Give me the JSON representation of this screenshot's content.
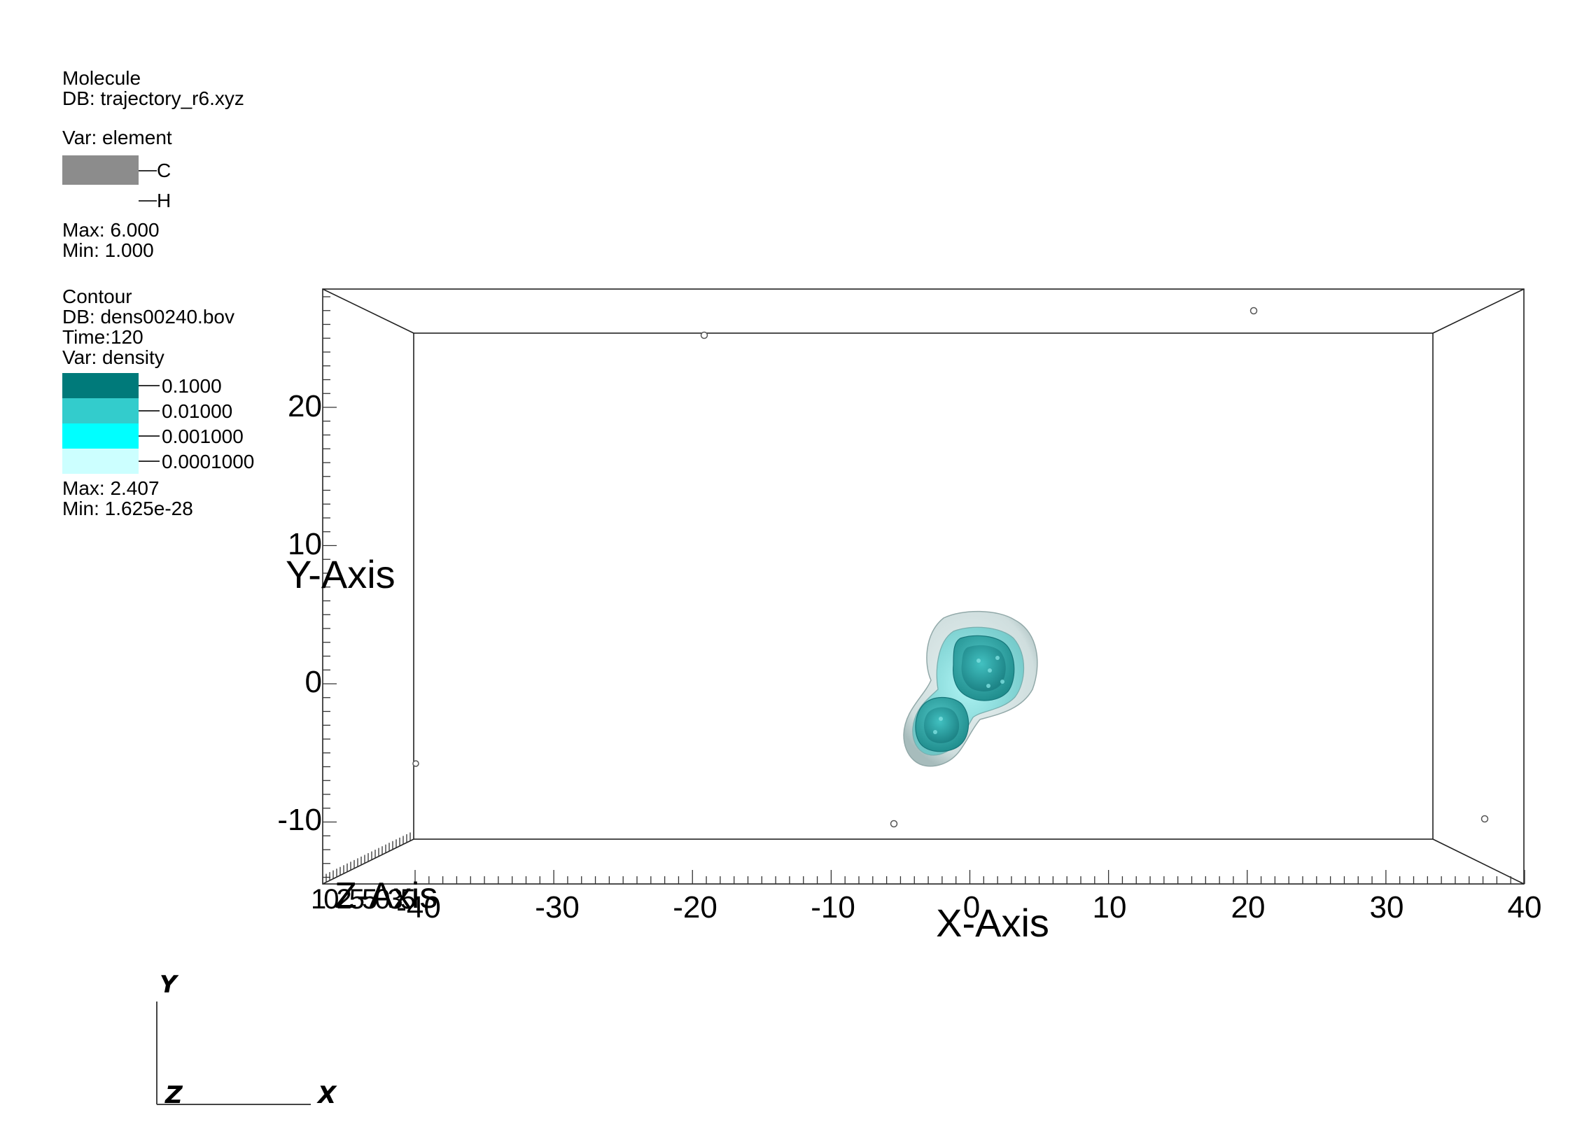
{
  "molecule_legend": {
    "plot_name": "Molecule",
    "db": "DB: trajectory_r6.xyz",
    "var": "Var: element",
    "entries": [
      {
        "label": "C",
        "color": "#8c8c8c"
      },
      {
        "label": "H",
        "color": "#ffffff"
      }
    ],
    "max": "Max:  6.000",
    "min": "Min:  1.000"
  },
  "contour_legend": {
    "plot_name": "Contour",
    "db": "DB: dens00240.bov",
    "time": "Time:120",
    "var": "Var: density",
    "levels": [
      {
        "label": "0.1000",
        "color": "#007a7a"
      },
      {
        "label": "0.01000",
        "color": "#33cccc"
      },
      {
        "label": "0.001000",
        "color": "#00ffff"
      },
      {
        "label": "0.0001000",
        "color": "#ccffff"
      }
    ],
    "max": "Max:  2.407",
    "min": "Min:  1.625e-28"
  },
  "axes": {
    "x_title": "X-Axis",
    "y_title": "Y-Axis",
    "z_title": "Z-Axis",
    "x_ticks": [
      "-40",
      "-30",
      "-20",
      "-10",
      "0",
      "10",
      "20",
      "30",
      "40"
    ],
    "y_ticks": [
      "20",
      "10",
      "0",
      "-10"
    ],
    "z_ticks_cluttered": "10255035"
  },
  "triad": {
    "x": "X",
    "y": "Y",
    "z": "Z"
  }
}
